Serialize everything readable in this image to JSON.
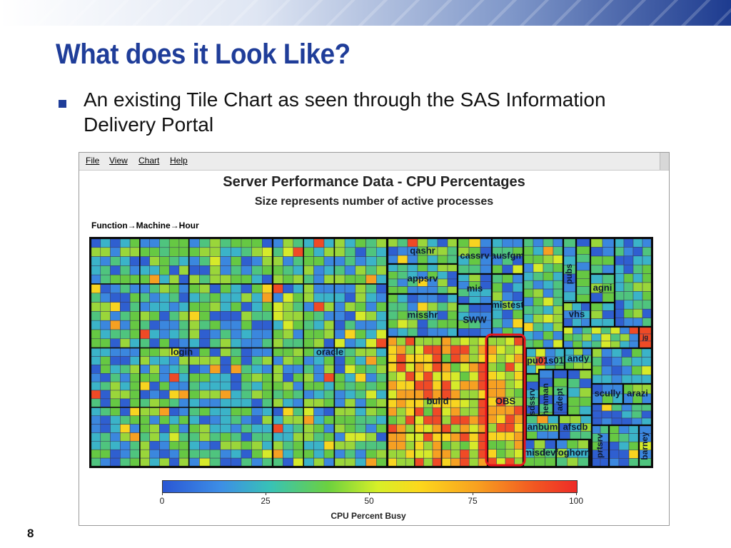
{
  "slide": {
    "title": "What does it Look Like?",
    "bullet": "An existing Tile Chart as seen through the SAS Information Delivery Portal",
    "page_number": "8"
  },
  "app": {
    "menu": [
      "File",
      "View",
      "Chart",
      "Help"
    ]
  },
  "chart": {
    "title": "Server Performance Data - CPU Percentages",
    "subtitle": "Size represents number of active processes",
    "hierarchy_label": "Function→Machine→Hour",
    "colorbar": {
      "label": "CPU Percent Busy",
      "ticks": [
        "0",
        "25",
        "50",
        "75",
        "100"
      ]
    },
    "highlight_color": "#e8141c",
    "palette": [
      "#2f5fd0",
      "#3b87de",
      "#3bb3c8",
      "#4fc47e",
      "#66c843",
      "#9ad63a",
      "#d6ea2a",
      "#f8d420",
      "#f6a022",
      "#ef4a26"
    ]
  },
  "chart_data": {
    "type": "treemap",
    "title": "Server Performance Data - CPU Percentages",
    "subtitle": "Size represents number of active processes",
    "color_scale": {
      "label": "CPU Percent Busy",
      "min": 0,
      "max": 100
    },
    "tiles": [
      {
        "name": "login"
      },
      {
        "name": "oracle"
      },
      {
        "name": "qashr"
      },
      {
        "name": "cassrv"
      },
      {
        "name": "ausfgm"
      },
      {
        "name": "appsrv"
      },
      {
        "name": "mis"
      },
      {
        "name": "misshr"
      },
      {
        "name": "mistest"
      },
      {
        "name": "SWW"
      },
      {
        "name": "build"
      },
      {
        "name": "OBS"
      },
      {
        "name": "pubs"
      },
      {
        "name": "agni"
      },
      {
        "name": "vhs"
      },
      {
        "name": "jg"
      },
      {
        "name": "pu01s01"
      },
      {
        "name": "andy"
      },
      {
        "name": "sdssrv"
      },
      {
        "name": "henman"
      },
      {
        "name": "adept"
      },
      {
        "name": "scully"
      },
      {
        "name": "arazi"
      },
      {
        "name": "anbum"
      },
      {
        "name": "afsdb"
      },
      {
        "name": "misdev"
      },
      {
        "name": "foghorn"
      },
      {
        "name": "prtsrv"
      },
      {
        "name": "barney"
      }
    ]
  }
}
